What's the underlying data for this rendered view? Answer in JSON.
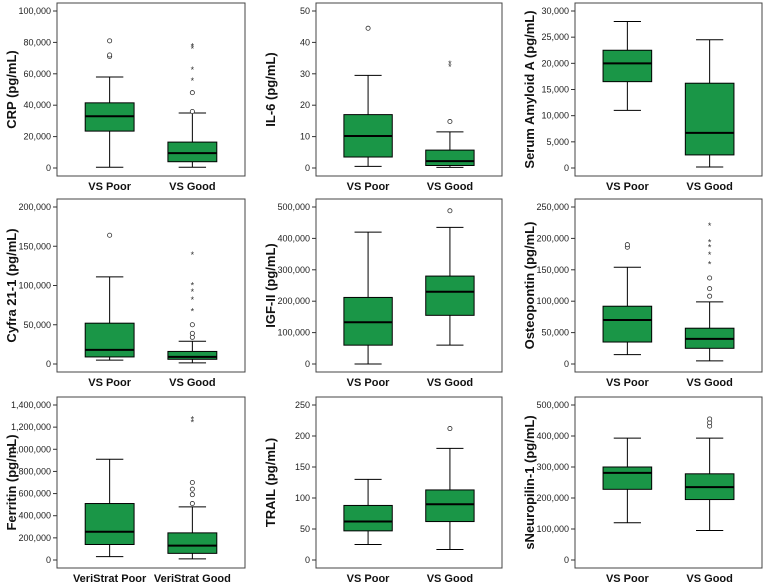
{
  "colors": {
    "box_fill": "#1a9647",
    "box_stroke": "#000000",
    "frame": "#444444",
    "outlier_fill": "#ffffff"
  },
  "chart_data": [
    {
      "type": "boxplot",
      "ylabel": "CRP (pg/mL)",
      "ylim": [
        0,
        100000
      ],
      "yticks": [
        0,
        20000,
        40000,
        60000,
        80000,
        100000
      ],
      "yticklabels": [
        "0",
        "20,000",
        "40,000",
        "60,000",
        "80,000",
        "100,000"
      ],
      "categories": [
        "VS Poor",
        "VS Good"
      ],
      "boxes": [
        {
          "min": 500,
          "q1": 23500,
          "median": 33000,
          "q3": 41500,
          "max": 58000,
          "outliers": [
            71000,
            72000,
            81000
          ],
          "extremes": []
        },
        {
          "min": 500,
          "q1": 4000,
          "median": 9500,
          "q3": 16500,
          "max": 35000,
          "outliers": [
            36000,
            48000
          ],
          "extremes": [
            56000,
            63000,
            76500,
            78000
          ]
        }
      ]
    },
    {
      "type": "boxplot",
      "ylabel": "IL-6 (pg/mL)",
      "ylim": [
        0,
        50
      ],
      "yticks": [
        0,
        10,
        20,
        30,
        40,
        50
      ],
      "yticklabels": [
        "0",
        "10",
        "20",
        "30",
        "40",
        "50"
      ],
      "categories": [
        "VS Poor",
        "VS Good"
      ],
      "boxes": [
        {
          "min": 0.5,
          "q1": 3.5,
          "median": 10.2,
          "q3": 17,
          "max": 29.5,
          "outliers": [
            44.5
          ],
          "extremes": []
        },
        {
          "min": 0.2,
          "q1": 0.8,
          "median": 2.2,
          "q3": 5.7,
          "max": 11.5,
          "outliers": [
            14.8
          ],
          "extremes": [
            32.5,
            33.5
          ]
        }
      ]
    },
    {
      "type": "boxplot",
      "ylabel": "Serum Amyloid A (pg/mL)",
      "ylim": [
        0,
        30000
      ],
      "yticks": [
        0,
        5000,
        10000,
        15000,
        20000,
        25000,
        30000
      ],
      "yticklabels": [
        "0",
        "5,000",
        "10,000",
        "15,000",
        "20,000",
        "25,000",
        "30,000"
      ],
      "categories": [
        "VS Poor",
        "VS Good"
      ],
      "boxes": [
        {
          "min": 11000,
          "q1": 16500,
          "median": 20000,
          "q3": 22500,
          "max": 28000,
          "outliers": [],
          "extremes": []
        },
        {
          "min": 200,
          "q1": 2500,
          "median": 6700,
          "q3": 16200,
          "max": 24500,
          "outliers": [],
          "extremes": []
        }
      ]
    },
    {
      "type": "boxplot",
      "ylabel": "Cyfra 21-1 (pg/mL)",
      "ylim": [
        0,
        200000
      ],
      "yticks": [
        0,
        50000,
        100000,
        150000,
        200000
      ],
      "yticklabels": [
        "0",
        "50,000",
        "100,000",
        "150,000",
        "200,000"
      ],
      "categories": [
        "VS Poor",
        "VS Good"
      ],
      "boxes": [
        {
          "min": 5000,
          "q1": 9000,
          "median": 18000,
          "q3": 52000,
          "max": 111000,
          "outliers": [
            164000
          ],
          "extremes": []
        },
        {
          "min": 1500,
          "q1": 6000,
          "median": 9000,
          "q3": 16000,
          "max": 29000,
          "outliers": [
            34000,
            39000,
            50000
          ],
          "extremes": [
            68000,
            83000,
            93000,
            101000,
            140000
          ]
        }
      ]
    },
    {
      "type": "boxplot",
      "ylabel": "IGF-II (pg/mL)",
      "ylim": [
        0,
        500000
      ],
      "yticks": [
        0,
        100000,
        200000,
        300000,
        400000,
        500000
      ],
      "yticklabels": [
        "0",
        "100,000",
        "200,000",
        "300,000",
        "400,000",
        "500,000"
      ],
      "categories": [
        "VS Poor",
        "VS Good"
      ],
      "boxes": [
        {
          "min": 0,
          "q1": 60000,
          "median": 133000,
          "q3": 212000,
          "max": 420000,
          "outliers": [],
          "extremes": []
        },
        {
          "min": 60000,
          "q1": 155000,
          "median": 230000,
          "q3": 280000,
          "max": 435000,
          "outliers": [
            488000
          ],
          "extremes": []
        }
      ]
    },
    {
      "type": "boxplot",
      "ylabel": "Osteopontin (pg/mL)",
      "ylim": [
        0,
        250000
      ],
      "yticks": [
        0,
        50000,
        100000,
        150000,
        200000,
        250000
      ],
      "yticklabels": [
        "0",
        "50,000",
        "100,000",
        "150,000",
        "200,000",
        "250,000"
      ],
      "categories": [
        "VS Poor",
        "VS Good"
      ],
      "boxes": [
        {
          "min": 15000,
          "q1": 35000,
          "median": 70000,
          "q3": 92000,
          "max": 154000,
          "outliers": [
            186000,
            190000
          ],
          "extremes": []
        },
        {
          "min": 5000,
          "q1": 25000,
          "median": 40000,
          "q3": 57000,
          "max": 99000,
          "outliers": [
            108000,
            120000,
            137000
          ],
          "extremes": [
            160000,
            175000,
            187000,
            195000,
            221000
          ]
        }
      ]
    },
    {
      "type": "boxplot",
      "ylabel": "Ferritin (pg/mL)",
      "ylim": [
        0,
        1400000
      ],
      "yticks": [
        0,
        200000,
        400000,
        600000,
        800000,
        1000000,
        1200000,
        1400000
      ],
      "yticklabels": [
        "0",
        "200,000",
        "400,000",
        "600,000",
        "800,000",
        "1,000,000",
        "1,200,000",
        "1,400,000"
      ],
      "categories": [
        "VeriStrat Poor",
        "VeriStrat Good"
      ],
      "boxes": [
        {
          "min": 30000,
          "q1": 140000,
          "median": 255000,
          "q3": 510000,
          "max": 910000,
          "outliers": [],
          "extremes": []
        },
        {
          "min": 10000,
          "q1": 60000,
          "median": 130000,
          "q3": 245000,
          "max": 480000,
          "outliers": [
            510000,
            590000,
            640000,
            700000
          ],
          "extremes": [
            1250000,
            1280000
          ]
        }
      ]
    },
    {
      "type": "boxplot",
      "ylabel": "TRAIL (pg/mL)",
      "ylim": [
        0,
        250
      ],
      "yticks": [
        0,
        50,
        100,
        150,
        200,
        250
      ],
      "yticklabels": [
        "0",
        "50",
        "100",
        "150",
        "200",
        "250"
      ],
      "categories": [
        "VS Poor",
        "VS Good"
      ],
      "boxes": [
        {
          "min": 25,
          "q1": 47,
          "median": 62,
          "q3": 88,
          "max": 130,
          "outliers": [],
          "extremes": []
        },
        {
          "min": 17,
          "q1": 62,
          "median": 90,
          "q3": 113,
          "max": 180,
          "outliers": [
            212
          ],
          "extremes": []
        }
      ]
    },
    {
      "type": "boxplot",
      "ylabel": "sNeuropilin-1 (pg/mL)",
      "ylim": [
        0,
        500000
      ],
      "yticks": [
        0,
        100000,
        200000,
        300000,
        400000,
        500000
      ],
      "yticklabels": [
        "0",
        "100,000",
        "200,000",
        "300,000",
        "400,000",
        "500,000"
      ],
      "categories": [
        "VS Poor",
        "VS Good"
      ],
      "boxes": [
        {
          "min": 120000,
          "q1": 228000,
          "median": 281000,
          "q3": 300000,
          "max": 393000,
          "outliers": [],
          "extremes": []
        },
        {
          "min": 95000,
          "q1": 195000,
          "median": 235000,
          "q3": 278000,
          "max": 393000,
          "outliers": [
            432000,
            443000,
            455000
          ],
          "extremes": []
        }
      ]
    }
  ]
}
